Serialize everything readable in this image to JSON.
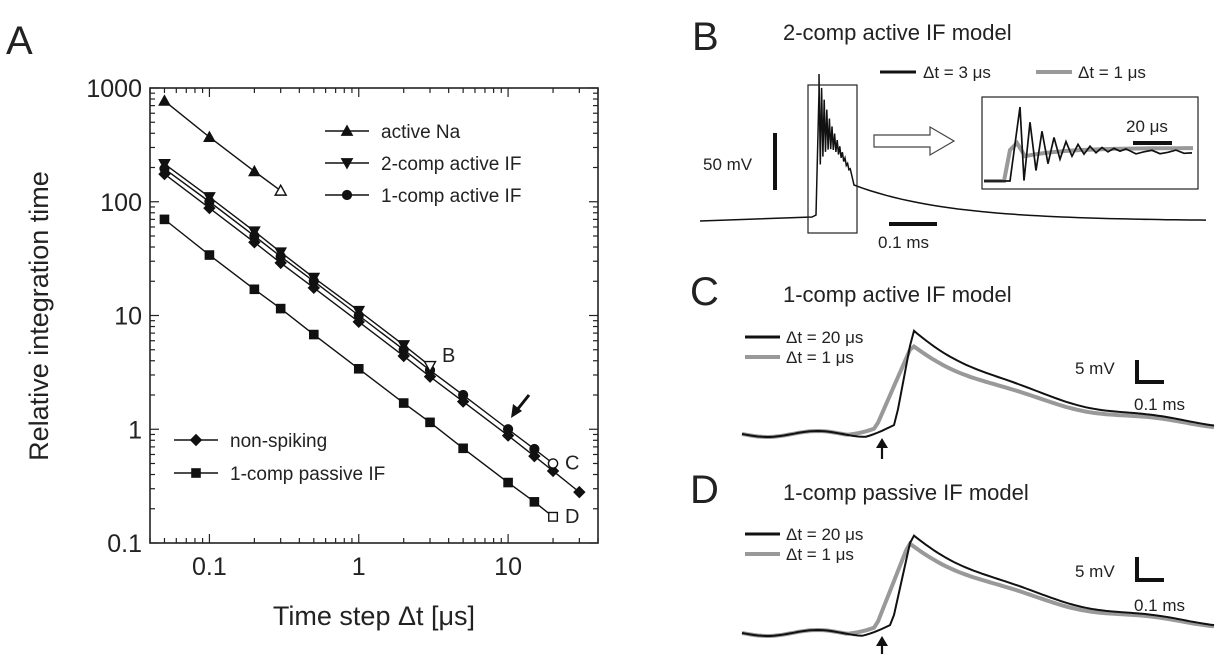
{
  "chart_data": [
    {
      "panel": "A",
      "type": "line",
      "xlabel": "Time step Δt [μs]",
      "ylabel": "Relative integration time",
      "xscale": "log",
      "yscale": "log",
      "xlim": [
        0.04,
        40
      ],
      "ylim": [
        0.1,
        1000
      ],
      "xticks": [
        0.1,
        1,
        10
      ],
      "xtick_labels": [
        "0.1",
        "1",
        "10"
      ],
      "yticks": [
        0.1,
        1,
        10,
        100,
        1000
      ],
      "ytick_labels": [
        "0.1",
        "1",
        "10",
        "100",
        "1000"
      ],
      "grid": false,
      "legend": "top-right and bottom-left",
      "series": [
        {
          "name": "active Na",
          "marker": "triangle-up",
          "x": [
            0.05,
            0.1,
            0.2
          ],
          "y": [
            770,
            370,
            185
          ],
          "open_point": {
            "x": 0.3,
            "y": 125
          }
        },
        {
          "name": "2-comp active IF",
          "marker": "triangle-down",
          "x": [
            0.05,
            0.1,
            0.2,
            0.3,
            0.5,
            1,
            2
          ],
          "y": [
            215,
            110,
            55,
            36,
            21.5,
            11,
            5.5
          ],
          "open_point": {
            "x": 3,
            "y": 3.6,
            "label": "B"
          }
        },
        {
          "name": "1-comp active IF",
          "marker": "circle",
          "x": [
            0.05,
            0.1,
            0.2,
            0.3,
            0.5,
            1,
            2,
            3,
            5,
            10,
            15
          ],
          "y": [
            195,
            100,
            50,
            33,
            20,
            10,
            5,
            3.3,
            2,
            1,
            0.67
          ],
          "open_point": {
            "x": 20,
            "y": 0.5,
            "label": "C"
          },
          "annotation": "arrow at Δt = 10 μs"
        },
        {
          "name": "non-spiking",
          "marker": "diamond",
          "x": [
            0.05,
            0.1,
            0.2,
            0.3,
            0.5,
            1,
            2,
            3,
            5,
            10,
            15,
            20,
            30
          ],
          "y": [
            175,
            88,
            44,
            29,
            17.5,
            8.8,
            4.4,
            2.9,
            1.75,
            0.88,
            0.58,
            0.43,
            0.28
          ]
        },
        {
          "name": "1-comp passive IF",
          "marker": "square",
          "x": [
            0.05,
            0.1,
            0.2,
            0.3,
            0.5,
            1,
            2,
            3,
            5,
            10,
            15
          ],
          "y": [
            70,
            34,
            17,
            11.5,
            6.8,
            3.4,
            1.7,
            1.15,
            0.68,
            0.34,
            0.23
          ],
          "open_point": {
            "x": 20,
            "y": 0.17,
            "label": "D"
          }
        }
      ]
    },
    {
      "panel": "B",
      "type": "line",
      "title": "2-comp active IF model",
      "legend": [
        {
          "name": "Δt = 3 μs",
          "color": "#111111"
        },
        {
          "name": "Δt = 1 μs",
          "color": "#999999"
        }
      ],
      "scalebars": {
        "voltage": "50 mV",
        "time": "0.1 ms",
        "inset_time": "20 μs"
      }
    },
    {
      "panel": "C",
      "type": "line",
      "title": "1-comp active IF model",
      "legend": [
        {
          "name": "Δt = 20 μs",
          "color": "#111111"
        },
        {
          "name": "Δt = 1 μs",
          "color": "#999999"
        }
      ],
      "scalebars": {
        "voltage": "5 mV",
        "time": "0.1 ms"
      }
    },
    {
      "panel": "D",
      "type": "line",
      "title": "1-comp passive IF model",
      "legend": [
        {
          "name": "Δt = 20 μs",
          "color": "#111111"
        },
        {
          "name": "Δt = 1 μs",
          "color": "#999999"
        }
      ],
      "scalebars": {
        "voltage": "5 mV",
        "time": "0.1 ms"
      }
    }
  ],
  "labels": {
    "A": "A",
    "B": "B",
    "C": "C",
    "D": "D"
  },
  "colors": {
    "dark": "#111111",
    "gray": "#999999"
  }
}
